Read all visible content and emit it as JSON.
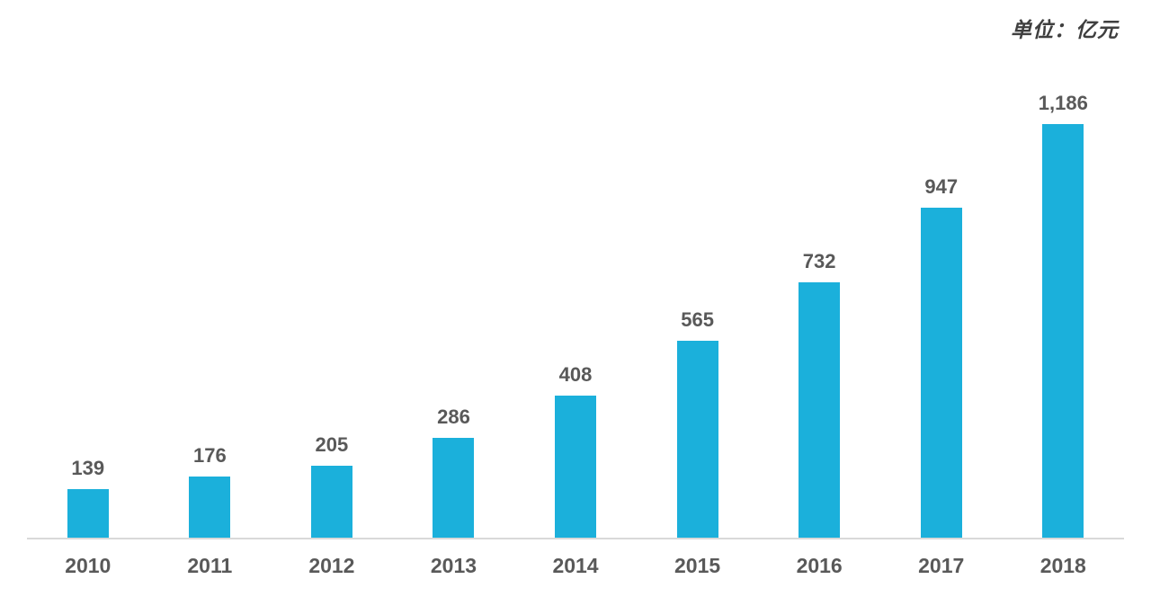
{
  "chart_data": {
    "type": "bar",
    "title": "",
    "unit_label": "单位：亿元",
    "categories": [
      "2010",
      "2011",
      "2012",
      "2013",
      "2014",
      "2015",
      "2016",
      "2017",
      "2018"
    ],
    "values": [
      139,
      176,
      205,
      286,
      408,
      565,
      732,
      947,
      1186
    ],
    "value_labels": [
      "139",
      "176",
      "205",
      "286",
      "408",
      "565",
      "732",
      "947",
      "1,186"
    ],
    "xlabel": "",
    "ylabel": "",
    "ylim": [
      0,
      1250
    ],
    "grid": false,
    "legend_position": "none",
    "bar_color": "#1bb0db",
    "label_color": "#595959",
    "unit_label_color": "#3f3f3f",
    "axis_line_color": "#d9d9d9"
  }
}
